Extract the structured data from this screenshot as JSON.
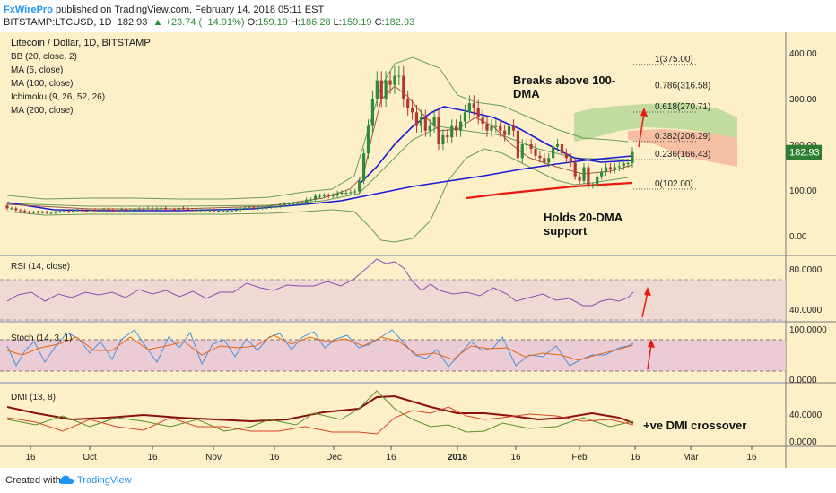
{
  "header": {
    "brand": "FxWirePro",
    "publish_text": " published on TradingView.com, February 14, 2018 05:11 EST",
    "symbol": "BITSTAMP:LTCUSD, 1D",
    "last": "182.93",
    "change": "▲ +23.74 (+14.91%)",
    "o_label": "O:",
    "o_value": "159.19",
    "h_label": "H:",
    "h_value": "186.28",
    "l_label": "L:",
    "l_value": "159.19",
    "c_label": "C:",
    "c_value": "182.93"
  },
  "legend": {
    "title": "Litecoin / Dollar, 1D, BITSTAMP",
    "items": [
      "BB (20, close, 2)",
      "MA (5, close)",
      "MA (100, close)",
      "Ichimoku (9, 26, 52, 26)",
      "MA (200, close)"
    ]
  },
  "annotations": {
    "breaks_line1": "Breaks above 100-",
    "breaks_line2": "DMA",
    "holds_line1": "Holds 20-DMA",
    "holds_line2": "support",
    "dmi_text": "+ve DMI crossover"
  },
  "fib_levels": [
    {
      "label": "1(375.00)",
      "value": 375.0
    },
    {
      "label": "0.786(316.58)",
      "value": 316.58
    },
    {
      "label": "0.618(270.71)",
      "value": 270.71
    },
    {
      "label": "0.382(206.29)",
      "value": 206.29
    },
    {
      "label": "0.236(166.43)",
      "value": 166.43
    },
    {
      "label": "0(102.00)",
      "value": 102.0
    }
  ],
  "price_axis": {
    "ticks": [
      {
        "label": "400.00",
        "value": 400
      },
      {
        "label": "300.00",
        "value": 300
      },
      {
        "label": "200.00",
        "value": 200
      },
      {
        "label": "100.00",
        "value": 100
      },
      {
        "label": "0.00",
        "value": 0
      }
    ],
    "current_label": "182.93",
    "current_value": 182.93
  },
  "panes": {
    "rsi": {
      "title": "RSI (14, close)",
      "ticks": [
        {
          "label": "80.0000",
          "value": 80
        },
        {
          "label": "40.0000",
          "value": 40
        }
      ]
    },
    "stoch": {
      "title": "Stoch (14, 3, 1)",
      "ticks": [
        {
          "label": "100.0000",
          "value": 100
        },
        {
          "label": "0.0000",
          "value": 0
        }
      ]
    },
    "dmi": {
      "title": "DMI (13, 8)",
      "ticks": [
        {
          "label": "40.0000",
          "value": 40
        },
        {
          "label": "0.0000",
          "value": 0
        }
      ]
    }
  },
  "x_axis": {
    "labels": [
      {
        "label": "16",
        "bold": false
      },
      {
        "label": "Oct",
        "bold": false
      },
      {
        "label": "16",
        "bold": false
      },
      {
        "label": "Nov",
        "bold": false
      },
      {
        "label": "16",
        "bold": false
      },
      {
        "label": "Dec",
        "bold": false
      },
      {
        "label": "16",
        "bold": false
      },
      {
        "label": "2018",
        "bold": true
      },
      {
        "label": "16",
        "bold": false
      },
      {
        "label": "Feb",
        "bold": false
      },
      {
        "label": "16",
        "bold": false
      },
      {
        "label": "Mar",
        "bold": false
      },
      {
        "label": "16",
        "bold": false
      }
    ]
  },
  "footer": {
    "created_with": "Created with",
    "brand": "TradingView"
  },
  "colors": {
    "background": "#fdf0c8",
    "up_candle": "#2e8b3a",
    "down_candle": "#b3372f",
    "bb": "#5b9a5b",
    "ma5": "#9c5a3c",
    "ma100": "#1a1ad6",
    "ma200": "#e8190f",
    "cloud_green": "#a8d18d",
    "cloud_red": "#f4b39a",
    "rsi": "#8a4fb0",
    "stoch_k": "#4a90e2",
    "stoch_d": "#e8670f",
    "band": "#e8c6d6",
    "dmi_plus": "#5a8f2a",
    "dmi_minus": "#d6452a",
    "adx": "#8b1010",
    "arrow": "#e8190f"
  },
  "chart_data": {
    "type": "candlestick",
    "title": "Litecoin / Dollar, 1D, BITSTAMP",
    "ylim": [
      -30,
      450
    ],
    "close": [
      60,
      60,
      56,
      55,
      52,
      50,
      52,
      51,
      52,
      50,
      50,
      52,
      54,
      55,
      53,
      55,
      56,
      55,
      54,
      57,
      55,
      55,
      58,
      57,
      56,
      55,
      58,
      57,
      57,
      58,
      59,
      58,
      60,
      59,
      59,
      61,
      60,
      58,
      57,
      61,
      59,
      57,
      56,
      56,
      56,
      56,
      56,
      55,
      55,
      55,
      55,
      55,
      57,
      60,
      61,
      62,
      60,
      60,
      62,
      63,
      64,
      64,
      67,
      70,
      70,
      70,
      71,
      72,
      79,
      79,
      87,
      87,
      88,
      87,
      88,
      93,
      94,
      94,
      95,
      97,
      120,
      180,
      240,
      300,
      340,
      300,
      340,
      330,
      350,
      350,
      300,
      280,
      270,
      240,
      260,
      230,
      240,
      260,
      200,
      220,
      215,
      240,
      230,
      250,
      270,
      290,
      280,
      260,
      245,
      230,
      240,
      240,
      230,
      220,
      240,
      230,
      170,
      200,
      200,
      190,
      175,
      170,
      160,
      170,
      195,
      200,
      180,
      170,
      160,
      130,
      120,
      150,
      110,
      110,
      130,
      140,
      150,
      145,
      150,
      152,
      159,
      159,
      183
    ],
    "open": [
      66,
      60,
      60,
      56,
      55,
      52,
      50,
      52,
      51,
      52,
      50,
      50,
      52,
      54,
      55,
      53,
      55,
      56,
      55,
      54,
      57,
      55,
      55,
      58,
      57,
      56,
      55,
      58,
      57,
      57,
      58,
      59,
      58,
      60,
      59,
      59,
      61,
      60,
      58,
      57,
      61,
      59,
      57,
      56,
      56,
      56,
      56,
      56,
      55,
      55,
      55,
      55,
      55,
      57,
      60,
      61,
      62,
      60,
      60,
      62,
      63,
      64,
      64,
      67,
      70,
      70,
      70,
      71,
      72,
      79,
      79,
      87,
      87,
      88,
      87,
      88,
      93,
      94,
      94,
      95,
      97,
      120,
      180,
      240,
      300,
      340,
      300,
      340,
      330,
      350,
      350,
      300,
      280,
      270,
      240,
      260,
      230,
      240,
      260,
      200,
      220,
      215,
      240,
      230,
      250,
      270,
      290,
      280,
      260,
      245,
      230,
      240,
      240,
      230,
      220,
      240,
      230,
      170,
      200,
      200,
      190,
      175,
      170,
      160,
      170,
      195,
      200,
      180,
      170,
      160,
      130,
      120,
      150,
      110,
      110,
      130,
      140,
      150,
      145,
      150,
      152,
      159,
      159
    ]
  }
}
